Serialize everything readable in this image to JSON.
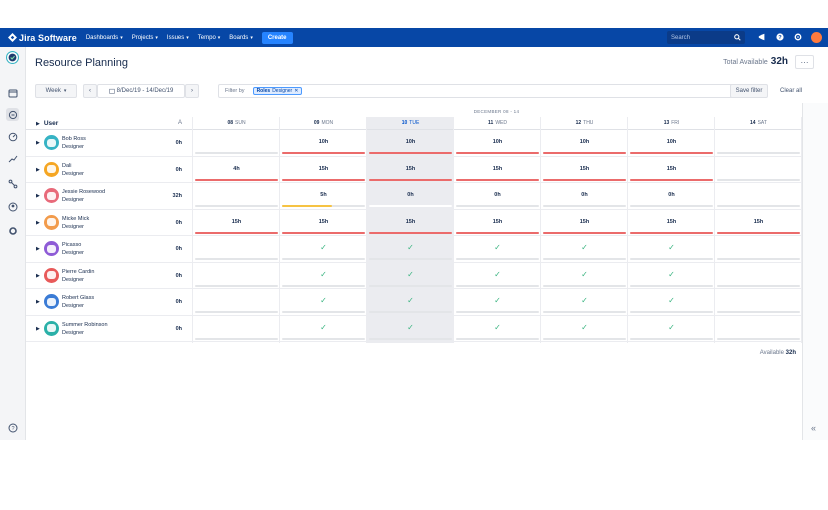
{
  "topbar": {
    "brand": "Jira Software",
    "nav": [
      "Dashboards",
      "Projects",
      "Issues",
      "Tempo",
      "Boards"
    ],
    "create_label": "Create",
    "search_placeholder": "Search"
  },
  "page": {
    "title": "Resource Planning",
    "total_label": "Total Available",
    "total_value": "32h",
    "more_label": "···"
  },
  "toolbar": {
    "period": "Week",
    "prev": "‹",
    "date_range": "8/Dec/19 - 14/Dec/19",
    "next": "›",
    "filter_label": "Filter by",
    "filter_tag_key": "Roles",
    "filter_tag_value": "Designer",
    "save_filter": "Save filter",
    "clear_all": "Clear all"
  },
  "grid": {
    "month_label": "DECEMBER 08 - 14",
    "user_header": "User",
    "sort_indicator": "A",
    "days": [
      {
        "num": "08",
        "name": "SUN",
        "today": false
      },
      {
        "num": "09",
        "name": "MON",
        "today": false
      },
      {
        "num": "10",
        "name": "TUE",
        "today": true
      },
      {
        "num": "11",
        "name": "WED",
        "today": false
      },
      {
        "num": "12",
        "name": "THU",
        "today": false
      },
      {
        "num": "13",
        "name": "FRI",
        "today": false
      },
      {
        "num": "14",
        "name": "SAT",
        "today": false
      }
    ],
    "users": [
      {
        "name": "Bob Ross",
        "role": "Designer",
        "total": "0h",
        "avatar_color": "#36b3c4",
        "cells": [
          "",
          "10h",
          "10h",
          "10h",
          "10h",
          "10h",
          ""
        ],
        "bars": [
          "",
          "red",
          "red",
          "red",
          "red",
          "red",
          ""
        ]
      },
      {
        "name": "Dali",
        "role": "Designer",
        "total": "0h",
        "avatar_color": "#f5a623",
        "cells": [
          "4h",
          "15h",
          "15h",
          "15h",
          "15h",
          "15h",
          ""
        ],
        "bars": [
          "red",
          "red",
          "red",
          "red",
          "red",
          "red",
          ""
        ]
      },
      {
        "name": "Jessie Rosewood",
        "role": "Designer",
        "total": "32h",
        "avatar_color": "#e86a7a",
        "cells": [
          "",
          "5h",
          "0h",
          "0h",
          "0h",
          "0h",
          ""
        ],
        "bars": [
          "",
          "yellow",
          "white",
          "",
          "",
          "",
          ""
        ]
      },
      {
        "name": "Micke Mick",
        "role": "Designer",
        "total": "0h",
        "avatar_color": "#f29b4b",
        "cells": [
          "15h",
          "15h",
          "15h",
          "15h",
          "15h",
          "15h",
          "15h"
        ],
        "bars": [
          "red",
          "red",
          "red",
          "red",
          "red",
          "red",
          "red"
        ]
      },
      {
        "name": "Picasso",
        "role": "Designer",
        "total": "0h",
        "avatar_color": "#8e5bd6",
        "cells": [
          "",
          "✓",
          "✓",
          "✓",
          "✓",
          "✓",
          ""
        ],
        "bars": [
          "",
          "",
          "",
          "",
          "",
          "",
          ""
        ]
      },
      {
        "name": "Pierre Cardin",
        "role": "Designer",
        "total": "0h",
        "avatar_color": "#e85a5a",
        "cells": [
          "",
          "✓",
          "✓",
          "✓",
          "✓",
          "✓",
          ""
        ],
        "bars": [
          "",
          "",
          "",
          "",
          "",
          "",
          ""
        ]
      },
      {
        "name": "Robert Glass",
        "role": "Designer",
        "total": "0h",
        "avatar_color": "#3a7bd5",
        "cells": [
          "",
          "✓",
          "✓",
          "✓",
          "✓",
          "✓",
          ""
        ],
        "bars": [
          "",
          "",
          "",
          "",
          "",
          "",
          ""
        ]
      },
      {
        "name": "Summer Robinson",
        "role": "Designer",
        "total": "0h",
        "avatar_color": "#2ab0a8",
        "cells": [
          "",
          "✓",
          "✓",
          "✓",
          "✓",
          "✓",
          ""
        ],
        "bars": [
          "",
          "",
          "",
          "",
          "",
          "",
          ""
        ]
      }
    ],
    "footer_available_label": "Available",
    "footer_available_value": "32h"
  },
  "colors": {
    "topbar": "#0747a6",
    "over": "#eb6b6b",
    "partial": "#f6c343",
    "check": "#36b37e"
  }
}
